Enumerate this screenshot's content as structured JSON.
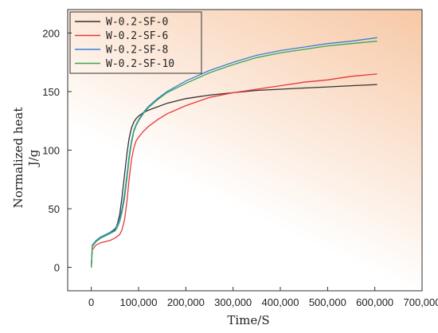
{
  "chart_data": {
    "type": "line",
    "title": "",
    "xlabel": "Time/S",
    "ylabel_line1": "Normalized heat",
    "ylabel_line2": "J/g",
    "xlim": [
      -50000,
      700000
    ],
    "ylim": [
      -20,
      220
    ],
    "xticks": [
      0,
      100000,
      200000,
      300000,
      400000,
      500000,
      600000,
      700000
    ],
    "xtick_labels": [
      "0",
      "100,000",
      "200,000",
      "300,000",
      "400,000",
      "500,000",
      "600,000",
      "700,000"
    ],
    "yticks": [
      0,
      50,
      100,
      150,
      200
    ],
    "ytick_labels": [
      "0",
      "50",
      "100",
      "150",
      "200"
    ],
    "legend_position": "top-left",
    "background_gradient": [
      "#f7c8a5",
      "#ffffff"
    ],
    "series": [
      {
        "name": "W-0.2-SF-0",
        "color": "#333333",
        "x": [
          0,
          2000,
          10000,
          20000,
          30000,
          40000,
          50000,
          55000,
          60000,
          65000,
          70000,
          75000,
          80000,
          85000,
          90000,
          95000,
          100000,
          110000,
          120000,
          140000,
          160000,
          200000,
          250000,
          300000,
          350000,
          400000,
          450000,
          500000,
          550000,
          605000
        ],
        "y": [
          0,
          18,
          22,
          25,
          27,
          29,
          32,
          37,
          45,
          60,
          78,
          96,
          110,
          119,
          124,
          127,
          129,
          132,
          134,
          137,
          140,
          144,
          147,
          149,
          151,
          152,
          153,
          154,
          155,
          156
        ]
      },
      {
        "name": "W-0.2-SF-6",
        "color": "#e8363a",
        "x": [
          0,
          2000,
          10000,
          20000,
          30000,
          40000,
          50000,
          60000,
          65000,
          70000,
          75000,
          80000,
          85000,
          90000,
          95000,
          100000,
          110000,
          120000,
          140000,
          160000,
          200000,
          250000,
          300000,
          350000,
          400000,
          450000,
          500000,
          550000,
          605000
        ],
        "y": [
          0,
          15,
          19,
          21,
          22,
          23,
          25,
          28,
          32,
          40,
          55,
          75,
          92,
          102,
          108,
          111,
          116,
          120,
          126,
          131,
          138,
          145,
          149,
          152,
          155,
          158,
          160,
          163,
          165
        ]
      },
      {
        "name": "W-0.2-SF-8",
        "color": "#3a7fd5",
        "x": [
          0,
          2000,
          10000,
          20000,
          30000,
          40000,
          50000,
          55000,
          60000,
          65000,
          70000,
          75000,
          80000,
          85000,
          90000,
          95000,
          100000,
          110000,
          120000,
          140000,
          160000,
          200000,
          250000,
          300000,
          350000,
          400000,
          450000,
          500000,
          550000,
          605000
        ],
        "y": [
          0,
          19,
          23,
          26,
          28,
          30,
          33,
          36,
          42,
          50,
          62,
          78,
          95,
          108,
          117,
          122,
          126,
          132,
          137,
          144,
          150,
          159,
          168,
          175,
          181,
          185,
          188,
          191,
          193,
          196
        ]
      },
      {
        "name": "W-0.2-SF-10",
        "color": "#3aa55a",
        "x": [
          0,
          2000,
          10000,
          20000,
          30000,
          40000,
          50000,
          55000,
          60000,
          65000,
          70000,
          75000,
          80000,
          85000,
          90000,
          95000,
          100000,
          110000,
          120000,
          140000,
          160000,
          200000,
          250000,
          300000,
          350000,
          400000,
          450000,
          500000,
          550000,
          605000
        ],
        "y": [
          0,
          18,
          22,
          25,
          27,
          29,
          31,
          34,
          39,
          47,
          58,
          74,
          92,
          106,
          116,
          121,
          125,
          131,
          136,
          143,
          149,
          157,
          166,
          173,
          179,
          183,
          186,
          189,
          191,
          193
        ]
      }
    ]
  }
}
